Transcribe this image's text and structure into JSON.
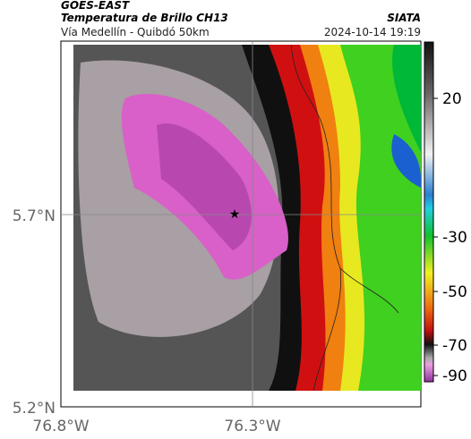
{
  "header": {
    "satellite": "GOES-EAST",
    "product": "Temperatura de Brillo CH13",
    "source": "SIATA",
    "route": "Vía Medellín - Quibdó 50km",
    "timestamp": "2024-10-14 19:19"
  },
  "map": {
    "lat_labels": [
      "5.7°N",
      "5.2°N"
    ],
    "lon_labels": [
      "76.8°W",
      "76.3°W"
    ]
  },
  "colorbar": {
    "ticks": [
      20,
      -30,
      -50,
      -70,
      -90
    ]
  }
}
